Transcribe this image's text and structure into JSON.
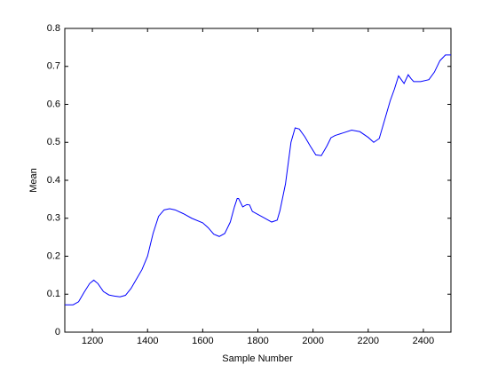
{
  "chart_data": {
    "type": "line",
    "x_label": "Sample Number",
    "y_label": "Mean",
    "x": [
      1100,
      1130,
      1150,
      1170,
      1190,
      1205,
      1220,
      1240,
      1260,
      1280,
      1300,
      1320,
      1340,
      1360,
      1380,
      1400,
      1420,
      1440,
      1460,
      1480,
      1500,
      1530,
      1560,
      1600,
      1620,
      1640,
      1660,
      1680,
      1700,
      1715,
      1725,
      1730,
      1745,
      1760,
      1770,
      1780,
      1800,
      1830,
      1850,
      1870,
      1880,
      1900,
      1920,
      1935,
      1950,
      1970,
      1990,
      2010,
      2030,
      2050,
      2065,
      2080,
      2110,
      2140,
      2170,
      2200,
      2220,
      2240,
      2260,
      2280,
      2295,
      2310,
      2320,
      2330,
      2345,
      2355,
      2365,
      2390,
      2420,
      2440,
      2460,
      2480,
      2500
    ],
    "series": [
      {
        "color": "#0000ff",
        "values": [
          0.072,
          0.072,
          0.08,
          0.105,
          0.128,
          0.137,
          0.128,
          0.107,
          0.098,
          0.095,
          0.093,
          0.097,
          0.115,
          0.14,
          0.165,
          0.2,
          0.26,
          0.305,
          0.322,
          0.325,
          0.322,
          0.312,
          0.3,
          0.288,
          0.275,
          0.258,
          0.252,
          0.26,
          0.29,
          0.33,
          0.352,
          0.352,
          0.33,
          0.336,
          0.335,
          0.318,
          0.31,
          0.298,
          0.29,
          0.295,
          0.32,
          0.39,
          0.5,
          0.538,
          0.535,
          0.515,
          0.49,
          0.467,
          0.465,
          0.49,
          0.512,
          0.518,
          0.525,
          0.532,
          0.528,
          0.513,
          0.5,
          0.51,
          0.56,
          0.61,
          0.64,
          0.675,
          0.665,
          0.655,
          0.678,
          0.668,
          0.66,
          0.66,
          0.665,
          0.685,
          0.715,
          0.73,
          0.73
        ]
      }
    ],
    "xlim": [
      1100,
      2500
    ],
    "xticks": [
      1200,
      1400,
      1600,
      1800,
      2000,
      2200,
      2400
    ],
    "ylim": [
      0,
      0.8
    ],
    "yticks": [
      0,
      0.1,
      0.2,
      0.3,
      0.4,
      0.5,
      0.6,
      0.7,
      0.8
    ],
    "grid": false
  }
}
